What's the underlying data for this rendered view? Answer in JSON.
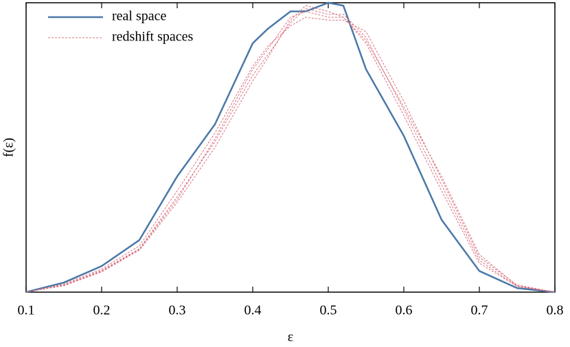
{
  "chart_data": {
    "type": "line",
    "xlabel": "ε",
    "ylabel": "f(ε)",
    "x": [
      0.1,
      0.15,
      0.2,
      0.25,
      0.3,
      0.35,
      0.4,
      0.42,
      0.45,
      0.47,
      0.5,
      0.52,
      0.55,
      0.6,
      0.65,
      0.7,
      0.75,
      0.8
    ],
    "series": [
      {
        "name": "real space",
        "color": "#4a78a8",
        "dashed": false,
        "curves": [
          [
            0,
            0.033,
            0.09,
            0.18,
            0.4,
            0.58,
            0.86,
            0.91,
            0.97,
            0.97,
            1.0,
            0.99,
            0.77,
            0.54,
            0.25,
            0.073,
            0.014,
            0
          ]
        ]
      },
      {
        "name": "redshift spaces",
        "color": "#d9707e",
        "dashed": true,
        "curves": [
          [
            0,
            0.025,
            0.075,
            0.15,
            0.33,
            0.52,
            0.75,
            0.82,
            0.93,
            0.98,
            0.96,
            0.96,
            0.88,
            0.63,
            0.37,
            0.11,
            0.02,
            0
          ],
          [
            0,
            0.022,
            0.07,
            0.145,
            0.31,
            0.5,
            0.73,
            0.81,
            0.94,
            0.99,
            0.97,
            0.95,
            0.86,
            0.61,
            0.35,
            0.1,
            0.02,
            0
          ],
          [
            0,
            0.028,
            0.08,
            0.16,
            0.35,
            0.55,
            0.78,
            0.85,
            0.92,
            0.95,
            0.94,
            0.94,
            0.9,
            0.66,
            0.39,
            0.12,
            0.025,
            0
          ],
          [
            0,
            0.024,
            0.072,
            0.148,
            0.32,
            0.53,
            0.77,
            0.84,
            0.95,
            0.97,
            0.95,
            0.95,
            0.87,
            0.64,
            0.4,
            0.13,
            0.022,
            0
          ]
        ]
      }
    ],
    "xlim": [
      0.1,
      0.8
    ],
    "xticks": [
      0.1,
      0.2,
      0.3,
      0.4,
      0.5,
      0.6,
      0.7,
      0.8
    ],
    "ylim": [
      0,
      1
    ],
    "legend": "upper left"
  }
}
